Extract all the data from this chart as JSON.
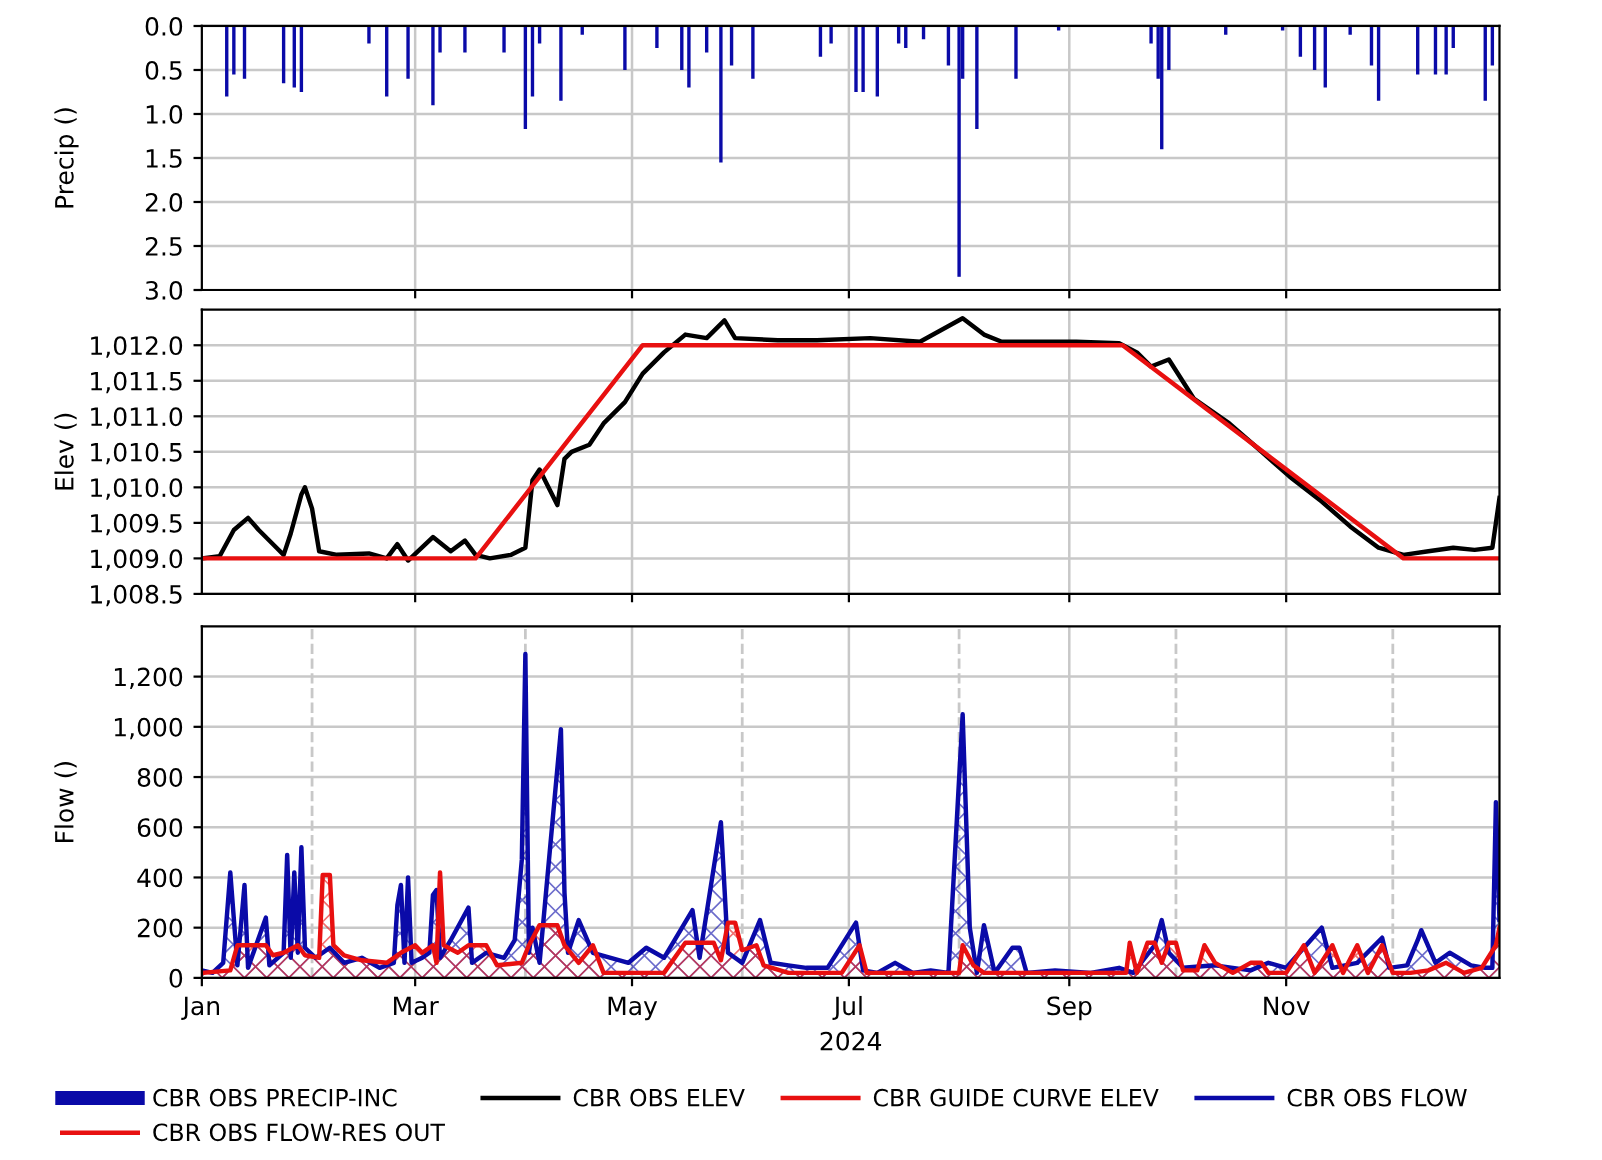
{
  "chart_data": [
    {
      "type": "bar",
      "ylabel": "Precip ()",
      "xlim": [
        "2024-01-01",
        "2024-12-31"
      ],
      "ylim": [
        3.0,
        0.0
      ],
      "yticks": [
        {
          "value": 0.0,
          "label": "0.0"
        },
        0.5,
        {
          "value": 1.0,
          "label": "1.0"
        },
        1.5,
        {
          "value": 2.0,
          "label": "2.0"
        },
        2.5,
        {
          "value": 3.0,
          "label": "3.0"
        }
      ],
      "xticks": [
        {
          "value": "2024-03-01",
          "label": null
        },
        {
          "value": "2024-05-01",
          "label": null
        },
        {
          "value": "2024-07-01",
          "label": null
        },
        {
          "value": "2024-09-01",
          "label": null
        },
        {
          "value": "2024-11-01",
          "label": null
        }
      ],
      "grid": true,
      "tick_labels": "y",
      "legend": "bottom",
      "x": [
        "2024-01-08",
        "2024-01-10",
        "2024-01-13",
        "2024-01-24",
        "2024-01-27",
        "2024-01-29",
        "2024-02-17",
        "2024-02-22",
        "2024-02-28",
        "2024-03-06",
        "2024-03-08",
        "2024-03-15",
        "2024-03-26",
        "2024-04-01",
        "2024-04-03",
        "2024-04-05",
        "2024-04-11",
        "2024-04-17",
        "2024-04-29",
        "2024-05-08",
        "2024-05-15",
        "2024-05-17",
        "2024-05-22",
        "2024-05-26",
        "2024-05-29",
        "2024-06-04",
        "2024-06-23",
        "2024-06-26",
        "2024-07-03",
        "2024-07-05",
        "2024-07-09",
        "2024-07-15",
        "2024-07-17",
        "2024-07-22",
        "2024-07-29",
        "2024-08-01",
        "2024-08-02",
        "2024-08-06",
        "2024-08-17",
        "2024-08-29",
        "2024-09-24",
        "2024-09-26",
        "2024-09-27",
        "2024-09-29",
        "2024-10-15",
        "2024-10-31",
        "2024-11-05",
        "2024-11-09",
        "2024-11-12",
        "2024-11-19",
        "2024-11-25",
        "2024-11-27",
        "2024-12-08",
        "2024-12-13",
        "2024-12-16",
        "2024-12-18",
        "2024-12-27",
        "2024-12-29"
      ],
      "series": [
        {
          "name": "CBR OBS PRECIP-INC",
          "color": "#0a0aa8",
          "values": [
            0.8,
            0.55,
            0.6,
            0.65,
            0.7,
            0.75,
            0.2,
            0.8,
            0.6,
            0.9,
            0.3,
            0.3,
            0.3,
            1.17,
            0.8,
            0.2,
            0.85,
            0.1,
            0.5,
            0.25,
            0.5,
            0.7,
            0.3,
            1.55,
            0.45,
            0.6,
            0.35,
            0.2,
            0.75,
            0.75,
            0.8,
            0.2,
            0.25,
            0.15,
            0.45,
            2.85,
            0.6,
            1.17,
            0.6,
            0.05,
            0.2,
            0.6,
            1.4,
            0.5,
            0.1,
            0.05,
            0.35,
            0.5,
            0.7,
            0.1,
            0.45,
            0.85,
            0.55,
            0.55,
            0.55,
            0.25,
            0.85,
            0.45
          ]
        }
      ]
    },
    {
      "type": "line",
      "ylabel": "Elev ()",
      "xlim": [
        "2024-01-01",
        "2024-12-31"
      ],
      "ylim": [
        1008.5,
        1012.5
      ],
      "yticks": [
        {
          "value": 1008.5,
          "label": "1,008.5"
        },
        {
          "value": 1009.0,
          "label": "1,009.0"
        },
        {
          "value": 1009.5,
          "label": "1,009.5"
        },
        {
          "value": 1010.0,
          "label": "1,010.0"
        },
        {
          "value": 1010.5,
          "label": "1,010.5"
        },
        {
          "value": 1011.0,
          "label": "1,011.0"
        },
        {
          "value": 1011.5,
          "label": "1,011.5"
        },
        {
          "value": 1012.0,
          "label": "1,012.0"
        }
      ],
      "xticks": [
        {
          "value": "2024-03-01",
          "label": null
        },
        {
          "value": "2024-05-01",
          "label": null
        },
        {
          "value": "2024-07-01",
          "label": null
        },
        {
          "value": "2024-09-01",
          "label": null
        },
        {
          "value": "2024-11-01",
          "label": null
        }
      ],
      "grid": true,
      "tick_labels": "y",
      "legend": "bottom",
      "series": [
        {
          "name": "CBR OBS ELEV",
          "color": "#000000",
          "x": [
            "2024-01-01",
            "2024-01-06",
            "2024-01-10",
            "2024-01-14",
            "2024-01-17",
            "2024-01-22",
            "2024-01-24",
            "2024-01-26",
            "2024-01-29",
            "2024-01-30",
            "2024-02-01",
            "2024-02-03",
            "2024-02-08",
            "2024-02-17",
            "2024-02-22",
            "2024-02-25",
            "2024-02-28",
            "2024-03-06",
            "2024-03-11",
            "2024-03-15",
            "2024-03-18",
            "2024-03-22",
            "2024-03-28",
            "2024-04-01",
            "2024-04-03",
            "2024-04-05",
            "2024-04-07",
            "2024-04-10",
            "2024-04-12",
            "2024-04-14",
            "2024-04-19",
            "2024-04-23",
            "2024-04-29",
            "2024-05-04",
            "2024-05-10",
            "2024-05-16",
            "2024-05-22",
            "2024-05-27",
            "2024-05-30",
            "2024-06-11",
            "2024-06-22",
            "2024-07-07",
            "2024-07-21",
            "2024-08-02",
            "2024-08-08",
            "2024-08-13",
            "2024-09-03",
            "2024-09-15",
            "2024-09-20",
            "2024-09-24",
            "2024-09-29",
            "2024-10-06",
            "2024-10-16",
            "2024-10-24",
            "2024-11-02",
            "2024-11-11",
            "2024-11-19",
            "2024-11-27",
            "2024-12-04",
            "2024-12-11",
            "2024-12-18",
            "2024-12-24",
            "2024-12-29",
            "2024-12-31"
          ],
          "values": [
            1009.0,
            1009.03,
            1009.4,
            1009.57,
            1009.4,
            1009.15,
            1009.05,
            1009.35,
            1009.9,
            1010.0,
            1009.7,
            1009.1,
            1009.05,
            1009.07,
            1009.0,
            1009.2,
            1008.97,
            1009.3,
            1009.1,
            1009.25,
            1009.05,
            1009.0,
            1009.05,
            1009.15,
            1010.1,
            1010.25,
            1010.05,
            1009.75,
            1010.4,
            1010.5,
            1010.6,
            1010.9,
            1011.2,
            1011.6,
            1011.9,
            1012.15,
            1012.1,
            1012.35,
            1012.1,
            1012.07,
            1012.07,
            1012.1,
            1012.05,
            1012.38,
            1012.15,
            1012.05,
            1012.05,
            1012.03,
            1011.9,
            1011.7,
            1011.8,
            1011.25,
            1010.9,
            1010.55,
            1010.15,
            1009.8,
            1009.45,
            1009.15,
            1009.05,
            1009.1,
            1009.15,
            1009.12,
            1009.15,
            1009.85
          ]
        },
        {
          "name": "CBR GUIDE CURVE ELEV",
          "color": "#e81010",
          "x": [
            "2024-01-01",
            "2024-03-18",
            "2024-05-04",
            "2024-09-16",
            "2024-12-04",
            "2024-12-31"
          ],
          "values": [
            1009.0,
            1009.0,
            1012.0,
            1012.0,
            1009.0,
            1009.0
          ]
        }
      ]
    },
    {
      "type": "area",
      "ylabel": "Flow ()",
      "xlabel": "2024",
      "xlim": [
        "2024-01-01",
        "2024-12-31"
      ],
      "ylim": [
        0,
        1400
      ],
      "yticks": [
        0,
        200,
        400,
        600,
        800,
        {
          "value": 1000,
          "label": "1,000"
        },
        {
          "value": 1200,
          "label": "1,200"
        }
      ],
      "xticks": [
        {
          "value": "2024-01-01",
          "label": "Jan"
        },
        {
          "value": "2024-03-01",
          "label": "Mar"
        },
        {
          "value": "2024-05-01",
          "label": "May"
        },
        {
          "value": "2024-07-01",
          "label": "Jul"
        },
        {
          "value": "2024-09-01",
          "label": "Sep"
        },
        {
          "value": "2024-11-01",
          "label": "Nov"
        }
      ],
      "grid": true,
      "legend": "bottom",
      "ref_lines": [
        {
          "axis": "x",
          "value": "2024-02-01",
          "color": "#c8c8c8",
          "line_style": "dashed"
        },
        {
          "axis": "x",
          "value": "2024-04-01",
          "color": "#c8c8c8",
          "line_style": "dashed"
        },
        {
          "axis": "x",
          "value": "2024-06-01",
          "color": "#c8c8c8",
          "line_style": "dashed"
        },
        {
          "axis": "x",
          "value": "2024-08-01",
          "color": "#c8c8c8",
          "line_style": "dashed"
        },
        {
          "axis": "x",
          "value": "2024-10-01",
          "color": "#c8c8c8",
          "line_style": "dashed"
        },
        {
          "axis": "x",
          "value": "2024-12-01",
          "color": "#c8c8c8",
          "line_style": "dashed"
        }
      ],
      "series": [
        {
          "name": "CBR OBS FLOW",
          "color": "#0a0aa8",
          "x": [
            "2024-01-01",
            "2024-01-04",
            "2024-01-07",
            "2024-01-09",
            "2024-01-11",
            "2024-01-13",
            "2024-01-14",
            "2024-01-19",
            "2024-01-20",
            "2024-01-24",
            "2024-01-25",
            "2024-01-26",
            "2024-01-27",
            "2024-01-28",
            "2024-01-29",
            "2024-01-30",
            "2024-02-02",
            "2024-02-06",
            "2024-02-10",
            "2024-02-15",
            "2024-02-20",
            "2024-02-24",
            "2024-02-25",
            "2024-02-26",
            "2024-02-27",
            "2024-02-28",
            "2024-02-29",
            "2024-03-03",
            "2024-03-05",
            "2024-03-06",
            "2024-03-07",
            "2024-03-08",
            "2024-03-11",
            "2024-03-16",
            "2024-03-17",
            "2024-03-21",
            "2024-03-26",
            "2024-03-29",
            "2024-03-31",
            "2024-04-01",
            "2024-04-02",
            "2024-04-03",
            "2024-04-05",
            "2024-04-11",
            "2024-04-12",
            "2024-04-13",
            "2024-04-16",
            "2024-04-20",
            "2024-04-25",
            "2024-04-30",
            "2024-05-05",
            "2024-05-10",
            "2024-05-18",
            "2024-05-20",
            "2024-05-26",
            "2024-05-28",
            "2024-06-01",
            "2024-06-06",
            "2024-06-09",
            "2024-06-14",
            "2024-06-19",
            "2024-06-25",
            "2024-07-03",
            "2024-07-05",
            "2024-07-09",
            "2024-07-14",
            "2024-07-19",
            "2024-07-24",
            "2024-07-29",
            "2024-08-02",
            "2024-08-04",
            "2024-08-06",
            "2024-08-08",
            "2024-08-11",
            "2024-08-16",
            "2024-08-18",
            "2024-08-20",
            "2024-08-28",
            "2024-09-07",
            "2024-09-15",
            "2024-09-19",
            "2024-09-25",
            "2024-09-27",
            "2024-09-29",
            "2024-10-03",
            "2024-10-12",
            "2024-10-22",
            "2024-10-27",
            "2024-11-01",
            "2024-11-11",
            "2024-11-14",
            "2024-11-21",
            "2024-11-28",
            "2024-11-30",
            "2024-12-05",
            "2024-12-08",
            "2024-12-09",
            "2024-12-13",
            "2024-12-17",
            "2024-12-23",
            "2024-12-27",
            "2024-12-29",
            "2024-12-30",
            "2024-12-31"
          ],
          "values": [
            30,
            20,
            60,
            420,
            50,
            370,
            40,
            240,
            50,
            100,
            490,
            80,
            420,
            100,
            520,
            120,
            80,
            120,
            60,
            80,
            40,
            60,
            290,
            370,
            60,
            400,
            60,
            80,
            100,
            330,
            350,
            80,
            150,
            280,
            60,
            100,
            80,
            150,
            470,
            1290,
            100,
            200,
            60,
            990,
            340,
            100,
            230,
            100,
            80,
            60,
            120,
            80,
            270,
            80,
            620,
            100,
            60,
            230,
            60,
            50,
            40,
            40,
            220,
            30,
            20,
            60,
            20,
            30,
            20,
            1050,
            200,
            20,
            210,
            20,
            120,
            120,
            20,
            30,
            20,
            40,
            20,
            130,
            230,
            100,
            40,
            50,
            30,
            60,
            40,
            200,
            40,
            60,
            160,
            40,
            50,
            150,
            190,
            60,
            100,
            50,
            40,
            40,
            700,
            230
          ]
        },
        {
          "name": "CBR OBS FLOW-RES OUT",
          "color": "#e81010",
          "x": [
            "2024-01-01",
            "2024-01-09",
            "2024-01-11",
            "2024-01-19",
            "2024-01-21",
            "2024-01-24",
            "2024-01-28",
            "2024-01-30",
            "2024-02-03",
            "2024-02-04",
            "2024-02-06",
            "2024-02-07",
            "2024-02-10",
            "2024-02-15",
            "2024-02-22",
            "2024-02-26",
            "2024-03-01",
            "2024-03-03",
            "2024-03-06",
            "2024-03-07",
            "2024-03-08",
            "2024-03-09",
            "2024-03-13",
            "2024-03-16",
            "2024-03-21",
            "2024-03-24",
            "2024-03-31",
            "2024-04-02",
            "2024-04-05",
            "2024-04-10",
            "2024-04-12",
            "2024-04-16",
            "2024-04-20",
            "2024-04-23",
            "2024-05-10",
            "2024-05-16",
            "2024-05-24",
            "2024-05-26",
            "2024-05-28",
            "2024-05-30",
            "2024-06-01",
            "2024-06-05",
            "2024-06-07",
            "2024-06-14",
            "2024-06-29",
            "2024-07-04",
            "2024-07-06",
            "2024-08-01",
            "2024-08-02",
            "2024-08-05",
            "2024-08-08",
            "2024-09-17",
            "2024-09-18",
            "2024-09-20",
            "2024-09-23",
            "2024-09-25",
            "2024-09-27",
            "2024-09-29",
            "2024-10-01",
            "2024-10-03",
            "2024-10-07",
            "2024-10-09",
            "2024-10-12",
            "2024-10-17",
            "2024-10-22",
            "2024-10-25",
            "2024-10-27",
            "2024-11-01",
            "2024-11-06",
            "2024-11-09",
            "2024-11-14",
            "2024-11-17",
            "2024-11-21",
            "2024-11-24",
            "2024-11-28",
            "2024-12-01",
            "2024-12-06",
            "2024-12-11",
            "2024-12-16",
            "2024-12-21",
            "2024-12-26",
            "2024-12-30",
            "2024-12-31"
          ],
          "values": [
            20,
            30,
            130,
            130,
            90,
            100,
            130,
            90,
            80,
            410,
            410,
            130,
            90,
            70,
            60,
            100,
            130,
            100,
            130,
            60,
            420,
            130,
            100,
            130,
            130,
            50,
            60,
            130,
            210,
            210,
            130,
            60,
            130,
            20,
            20,
            140,
            140,
            70,
            220,
            220,
            110,
            130,
            50,
            20,
            20,
            130,
            20,
            20,
            130,
            50,
            20,
            20,
            140,
            20,
            140,
            140,
            60,
            140,
            140,
            30,
            30,
            130,
            60,
            20,
            60,
            60,
            20,
            20,
            130,
            20,
            130,
            20,
            130,
            20,
            130,
            20,
            20,
            30,
            60,
            20,
            40,
            130,
            200
          ]
        }
      ]
    }
  ]
}
